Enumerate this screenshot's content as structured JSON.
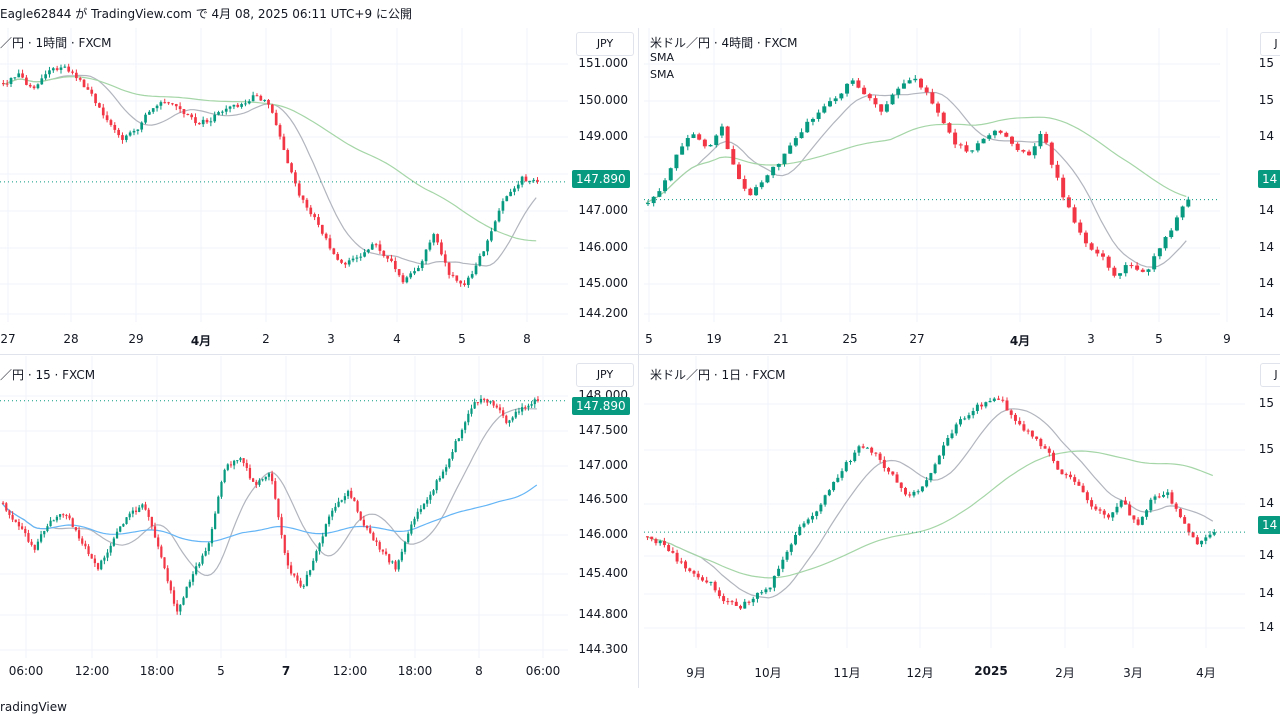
{
  "header": {
    "text": "Eagle62844 が TradingView.com で 4月 08, 2025 06:11 UTC+9 に公開"
  },
  "footer": {
    "text": "radingView"
  },
  "colors": {
    "up": "#089981",
    "down": "#f23645",
    "sma_fast": "#b2b5be",
    "sma_slow_green": "#a5d6a7",
    "sma_slow_blue": "#64b5f6",
    "grid": "#f0f3fa"
  },
  "panels": [
    {
      "id": "p1",
      "title": "／円 · 1時間 · FXCM",
      "unit": "JPY",
      "sma_labels": [],
      "y_ticks": [
        "151.000",
        "150.000",
        "149.000",
        "",
        "147.000",
        "146.000",
        "145.000",
        "144.200"
      ],
      "x_ticks": [
        {
          "t": "27",
          "b": false
        },
        {
          "t": "28",
          "b": false
        },
        {
          "t": "29",
          "b": false
        },
        {
          "t": "4月",
          "b": true
        },
        {
          "t": "2",
          "b": false
        },
        {
          "t": "3",
          "b": false
        },
        {
          "t": "4",
          "b": false
        },
        {
          "t": "5",
          "b": false
        },
        {
          "t": "8",
          "b": false
        }
      ],
      "price_tag": "147.890"
    },
    {
      "id": "p2",
      "title": "米ドル／円 · 4時間 · FXCM",
      "unit": "J",
      "sma_labels": [
        "SMA",
        "SMA"
      ],
      "y_ticks": [
        "15",
        "15",
        "14",
        "",
        "14",
        "14",
        "14",
        "14"
      ],
      "x_ticks": [
        {
          "t": "5",
          "b": false
        },
        {
          "t": "19",
          "b": false
        },
        {
          "t": "21",
          "b": false
        },
        {
          "t": "25",
          "b": false
        },
        {
          "t": "27",
          "b": false
        },
        {
          "t": "4月",
          "b": true
        },
        {
          "t": "3",
          "b": false
        },
        {
          "t": "5",
          "b": false
        },
        {
          "t": "9",
          "b": false
        }
      ],
      "price_tag": "14"
    },
    {
      "id": "p3",
      "title": "／円 · 15 · FXCM",
      "unit": "JPY",
      "sma_labels": [],
      "y_ticks": [
        "148.000",
        "147.500",
        "147.000",
        "146.500",
        "146.000",
        "145.400",
        "144.800",
        "144.300"
      ],
      "x_ticks": [
        {
          "t": "06:00",
          "b": false
        },
        {
          "t": "12:00",
          "b": false
        },
        {
          "t": "18:00",
          "b": false
        },
        {
          "t": "5",
          "b": false
        },
        {
          "t": "7",
          "b": true
        },
        {
          "t": "12:00",
          "b": false
        },
        {
          "t": "18:00",
          "b": false
        },
        {
          "t": "8",
          "b": false
        },
        {
          "t": "06:00",
          "b": false
        }
      ],
      "price_tag": "147.890"
    },
    {
      "id": "p4",
      "title": "米ドル／円 · 1日 · FXCM",
      "unit": "J",
      "sma_labels": [],
      "y_ticks": [
        "15",
        "15",
        "14",
        "14",
        "14",
        "14"
      ],
      "x_ticks": [
        {
          "t": "9月",
          "b": false
        },
        {
          "t": "10月",
          "b": false
        },
        {
          "t": "11月",
          "b": false
        },
        {
          "t": "12月",
          "b": false
        },
        {
          "t": "2025",
          "b": true
        },
        {
          "t": "2月",
          "b": false
        },
        {
          "t": "3月",
          "b": false
        },
        {
          "t": "4月",
          "b": false
        }
      ],
      "price_tag": "14"
    }
  ],
  "chart_data": [
    {
      "type": "candlestick",
      "title": "／円 · 1時間 · FXCM",
      "interval": "1時間",
      "ylim": [
        144.2,
        151.3
      ],
      "path": [
        150.5,
        150.8,
        150.4,
        150.9,
        151.0,
        150.7,
        150.2,
        149.6,
        149.0,
        149.3,
        149.9,
        150.1,
        149.8,
        149.5,
        149.6,
        149.9,
        150.0,
        150.2,
        150.0,
        148.6,
        147.5,
        146.9,
        146.1,
        145.6,
        145.9,
        146.2,
        145.8,
        145.2,
        145.6,
        146.5,
        145.4,
        145.1,
        145.7,
        146.7,
        147.6,
        148.0,
        147.9
      ],
      "series": [
        {
          "name": "SMA",
          "kind": "fast"
        },
        {
          "name": "SMA",
          "kind": "slow-green"
        }
      ],
      "last": 147.89
    },
    {
      "type": "candlestick",
      "title": "米ドル／円 · 4時間 · FXCM",
      "interval": "4時間",
      "ylim": [
        144.5,
        152.0
      ],
      "path": [
        147.8,
        148.3,
        149.2,
        149.8,
        149.3,
        150.0,
        148.6,
        148.0,
        148.5,
        149.0,
        149.6,
        150.1,
        150.6,
        150.9,
        151.3,
        150.8,
        150.4,
        151.0,
        151.4,
        151.0,
        150.2,
        149.5,
        149.2,
        149.6,
        149.9,
        149.4,
        149.1,
        149.8,
        148.5,
        147.4,
        146.6,
        146.3,
        145.6,
        146.1,
        145.8,
        146.4,
        147.2,
        147.9
      ],
      "series": [
        {
          "name": "SMA",
          "kind": "fast"
        },
        {
          "name": "SMA",
          "kind": "slow-green"
        }
      ],
      "last": 147.89
    },
    {
      "type": "candlestick",
      "title": "／円 · 15 · FXCM",
      "interval": "15",
      "ylim": [
        144.3,
        148.1
      ],
      "path": [
        146.4,
        146.1,
        145.8,
        146.2,
        146.3,
        145.9,
        145.5,
        145.9,
        146.3,
        146.4,
        145.7,
        144.9,
        145.4,
        145.8,
        146.9,
        147.1,
        146.7,
        146.9,
        145.6,
        145.2,
        145.8,
        146.4,
        146.6,
        146.1,
        145.8,
        145.5,
        146.2,
        146.5,
        146.9,
        147.4,
        147.9,
        147.9,
        147.6,
        147.8,
        147.9
      ],
      "series": [
        {
          "name": "SMA",
          "kind": "fast"
        },
        {
          "name": "SMA",
          "kind": "slow-blue"
        }
      ],
      "last": 147.89
    },
    {
      "type": "candlestick",
      "title": "米ドル／円 · 1日 · FXCM",
      "interval": "1日",
      "ylim": [
        139.0,
        159.5
      ],
      "path": [
        147.5,
        146.9,
        145.6,
        144.6,
        144.0,
        142.5,
        141.9,
        142.8,
        143.6,
        146.0,
        148.5,
        149.4,
        151.6,
        153.3,
        154.8,
        153.9,
        152.3,
        150.5,
        151.6,
        153.8,
        156.2,
        157.4,
        158.2,
        158.5,
        156.9,
        155.6,
        154.6,
        152.6,
        151.8,
        149.9,
        149.1,
        150.3,
        148.4,
        150.6,
        150.9,
        148.5,
        146.9,
        147.89
      ],
      "series": [
        {
          "name": "SMA",
          "kind": "fast"
        },
        {
          "name": "SMA",
          "kind": "slow-green"
        }
      ],
      "last": 147.89
    }
  ]
}
